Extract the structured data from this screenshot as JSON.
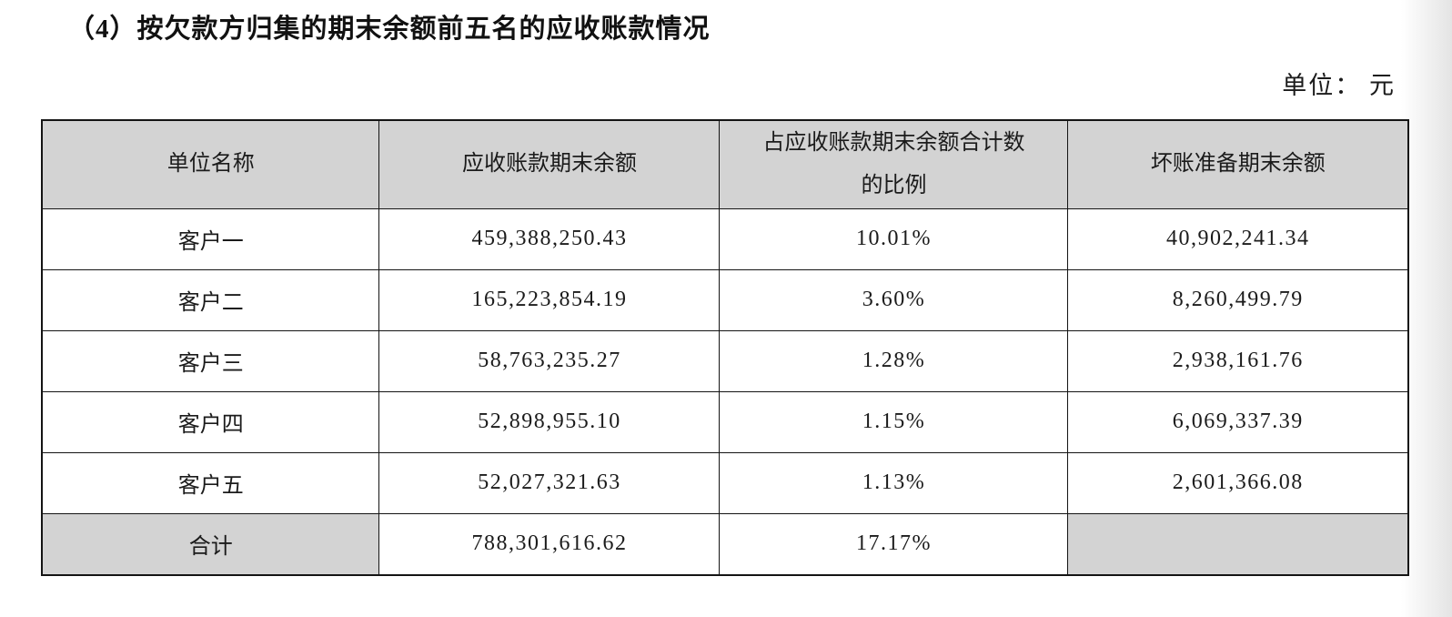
{
  "page": {
    "title": "（4）按欠款方归集的期末余额前五名的应收账款情况",
    "unit_label": "单位： 元"
  },
  "table": {
    "columns": [
      "单位名称",
      "应收账款期末余额",
      "占应收账款期末余额合计数的比例",
      "坏账准备期末余额"
    ],
    "rows": [
      {
        "name": "客户一",
        "ending_balance": "459,388,250.43",
        "ratio": "10.01%",
        "bad_debt_reserve": "40,902,241.34"
      },
      {
        "name": "客户二",
        "ending_balance": "165,223,854.19",
        "ratio": "3.60%",
        "bad_debt_reserve": "8,260,499.79"
      },
      {
        "name": "客户三",
        "ending_balance": "58,763,235.27",
        "ratio": "1.28%",
        "bad_debt_reserve": "2,938,161.76"
      },
      {
        "name": "客户四",
        "ending_balance": "52,898,955.10",
        "ratio": "1.15%",
        "bad_debt_reserve": "6,069,337.39"
      },
      {
        "name": "客户五",
        "ending_balance": "52,027,321.63",
        "ratio": "1.13%",
        "bad_debt_reserve": "2,601,366.08"
      }
    ],
    "total_row": {
      "name": "合计",
      "ending_balance": "788,301,616.62",
      "ratio": "17.17%",
      "bad_debt_reserve": ""
    }
  },
  "colors": {
    "header_bg": "#d3d3d3",
    "border": "#141414",
    "text": "#1b1b1b"
  }
}
